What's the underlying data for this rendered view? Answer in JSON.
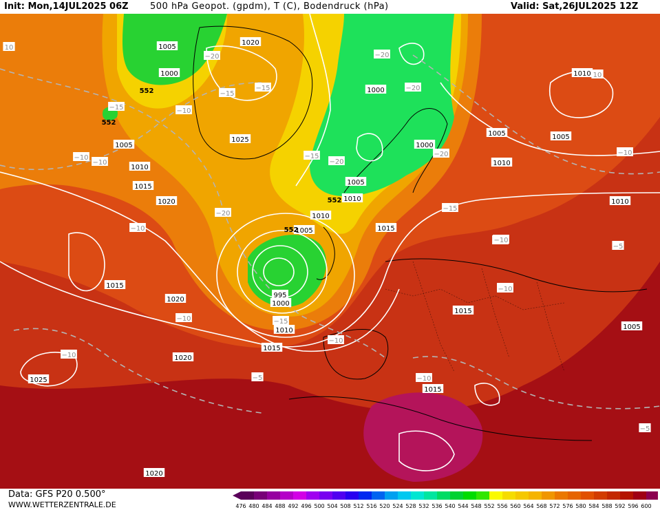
{
  "title": {
    "init": "Init: Mon,14JUL2025 06Z",
    "main": "500 hPa Geopot. (gpdm), T (C), Bodendruck (hPa)",
    "valid": "Valid: Sat,26JUL2025 12Z"
  },
  "footer": {
    "data_source": "Data: GFS P20 0.500°",
    "website": "WWW.WETTERZENTRALE.DE"
  },
  "legend": {
    "values": [
      "476",
      "480",
      "484",
      "488",
      "492",
      "496",
      "500",
      "504",
      "508",
      "512",
      "516",
      "520",
      "524",
      "528",
      "532",
      "536",
      "540",
      "544",
      "548",
      "552",
      "556",
      "560",
      "564",
      "568",
      "572",
      "576",
      "580",
      "584",
      "588",
      "592",
      "596",
      "600"
    ],
    "colors": [
      "#5a005a",
      "#780078",
      "#9600a0",
      "#b400c8",
      "#d200e6",
      "#a000f0",
      "#7800f0",
      "#5000f0",
      "#2800f0",
      "#0028f0",
      "#0064f0",
      "#00a0f0",
      "#00c8f0",
      "#00e6d2",
      "#00e6a0",
      "#00dc64",
      "#00d232",
      "#00dc00",
      "#32e600",
      "#fafa00",
      "#f5dc00",
      "#f5c800",
      "#f5b400",
      "#f09600",
      "#eb7800",
      "#e66400",
      "#e15000",
      "#d23c00",
      "#c32800",
      "#b41400",
      "#a00014",
      "#8c0050"
    ]
  },
  "isobar_labels": [
    {
      "t": "1005",
      "id": "p1"
    },
    {
      "t": "1000",
      "id": "p2"
    },
    {
      "t": "1020",
      "id": "p3"
    },
    {
      "t": "1025",
      "id": "p4"
    },
    {
      "t": "1005",
      "id": "p5"
    },
    {
      "t": "1010",
      "id": "p6"
    },
    {
      "t": "1015",
      "id": "p7"
    },
    {
      "t": "1020",
      "id": "p8"
    },
    {
      "t": "1015",
      "id": "p9"
    },
    {
      "t": "1020",
      "id": "p10"
    },
    {
      "t": "1020",
      "id": "p11"
    },
    {
      "t": "1025",
      "id": "p12"
    },
    {
      "t": "1020",
      "id": "p13"
    },
    {
      "t": "1015",
      "id": "p14"
    },
    {
      "t": "1010",
      "id": "p15"
    },
    {
      "t": "1000",
      "id": "p16"
    },
    {
      "t": "995",
      "id": "p17"
    },
    {
      "t": "1005",
      "id": "p18"
    },
    {
      "t": "1010",
      "id": "p19"
    },
    {
      "t": "1010",
      "id": "p20"
    },
    {
      "t": "1005",
      "id": "p21"
    },
    {
      "t": "1000",
      "id": "p22"
    },
    {
      "t": "1000",
      "id": "p23"
    },
    {
      "t": "1005",
      "id": "p24"
    },
    {
      "t": "1010",
      "id": "p25"
    },
    {
      "t": "1015",
      "id": "p26"
    },
    {
      "t": "1010",
      "id": "p27"
    },
    {
      "t": "1005",
      "id": "p28"
    },
    {
      "t": "1010",
      "id": "p29"
    },
    {
      "t": "1015",
      "id": "p30"
    },
    {
      "t": "1005",
      "id": "p31"
    },
    {
      "t": "1015",
      "id": "p32"
    }
  ],
  "temp_labels": [
    {
      "t": "10",
      "id": "t1"
    },
    {
      "t": "-15",
      "id": "t2"
    },
    {
      "t": "-10",
      "id": "t3"
    },
    {
      "t": "-10",
      "id": "t4"
    },
    {
      "t": "-20",
      "id": "t5"
    },
    {
      "t": "-15",
      "id": "t6"
    },
    {
      "t": "-15",
      "id": "t7"
    },
    {
      "t": "-10",
      "id": "t8"
    },
    {
      "t": "-20",
      "id": "t9"
    },
    {
      "t": "-10",
      "id": "t10"
    },
    {
      "t": "-20",
      "id": "t11"
    },
    {
      "t": "-15",
      "id": "t12"
    },
    {
      "t": "-20",
      "id": "t13"
    },
    {
      "t": "-10",
      "id": "t14"
    },
    {
      "t": "-10",
      "id": "t15"
    },
    {
      "t": "-20",
      "id": "t16"
    },
    {
      "t": "-20",
      "id": "t17"
    },
    {
      "t": "-15",
      "id": "t18"
    },
    {
      "t": "-15",
      "id": "t19"
    },
    {
      "t": "-10",
      "id": "t20"
    },
    {
      "t": "-10",
      "id": "t21"
    },
    {
      "t": "-10",
      "id": "t22"
    },
    {
      "t": "-5",
      "id": "t23"
    },
    {
      "t": "-10",
      "id": "t24"
    },
    {
      "t": "-10",
      "id": "t25"
    },
    {
      "t": "-10",
      "id": "t26"
    },
    {
      "t": "-5",
      "id": "t27"
    },
    {
      "t": "-5",
      "id": "t28"
    },
    {
      "t": "10",
      "id": "t29"
    },
    {
      "t": "-10",
      "id": "t30"
    }
  ],
  "geopot_labels": [
    {
      "t": "552",
      "id": "g1"
    },
    {
      "t": "552",
      "id": "g2"
    },
    {
      "t": "552",
      "id": "g3"
    },
    {
      "t": "552",
      "id": "g4"
    }
  ]
}
